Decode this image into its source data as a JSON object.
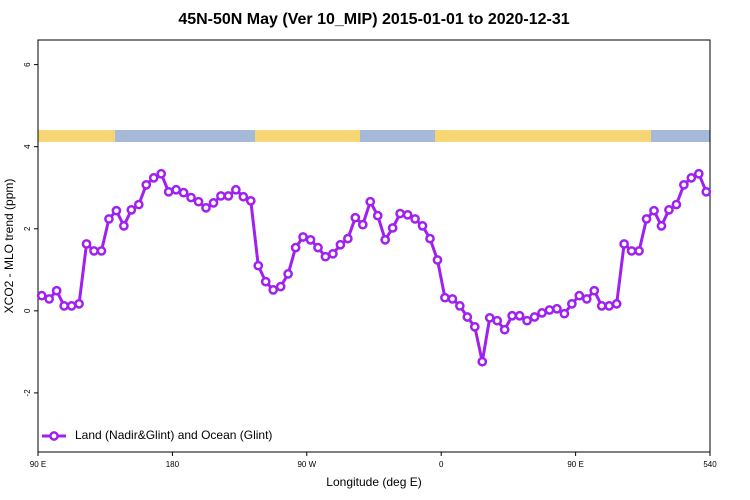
{
  "chart_data": {
    "type": "line",
    "title": "45N-50N May (Ver 10_MIP)   2015-01-01 to 2020-12-31",
    "x_label": "Longitude (deg E)",
    "y_label": "XCO2 - MLO trend (ppm)",
    "x": [
      92.5,
      97.5,
      102.5,
      107.5,
      112.5,
      117.5,
      122.5,
      127.5,
      132.5,
      137.5,
      142.5,
      147.5,
      152.5,
      157.5,
      162.5,
      167.5,
      172.5,
      177.5,
      182.5,
      187.5,
      192.5,
      197.5,
      202.5,
      207.5,
      212.5,
      217.5,
      222.5,
      227.5,
      232.5,
      237.5,
      242.5,
      247.5,
      252.5,
      257.5,
      262.5,
      267.5,
      272.5,
      277.5,
      282.5,
      287.5,
      292.5,
      297.5,
      302.5,
      307.5,
      312.5,
      317.5,
      322.5,
      327.5,
      332.5,
      337.5,
      342.5,
      347.5,
      352.5,
      357.5,
      362.5,
      367.5,
      372.5,
      377.5,
      382.5,
      387.5,
      392.5,
      397.5,
      402.5,
      407.5,
      412.5,
      417.5,
      422.5,
      427.5,
      432.5,
      437.5,
      442.5,
      447.5,
      452.5,
      457.5,
      462.5,
      467.5,
      472.5,
      477.5,
      482.5,
      487.5,
      492.5,
      497.5,
      502.5,
      507.5,
      512.5,
      517.5,
      522.5,
      527.5,
      532.5,
      537.5
    ],
    "series": [
      {
        "name": "Land (Nadir&Glint) and Ocean (Glint)",
        "color": "#a020f0",
        "values": [
          0.37,
          0.29,
          0.49,
          0.12,
          0.12,
          0.17,
          1.63,
          1.46,
          1.46,
          2.24,
          2.44,
          2.07,
          2.46,
          2.59,
          3.07,
          3.24,
          3.34,
          2.9,
          2.95,
          2.88,
          2.76,
          2.66,
          2.51,
          2.63,
          2.8,
          2.8,
          2.95,
          2.78,
          2.68,
          1.1,
          0.71,
          0.51,
          0.59,
          0.9,
          1.54,
          1.8,
          1.73,
          1.54,
          1.32,
          1.39,
          1.61,
          1.76,
          2.27,
          2.1,
          2.66,
          2.32,
          1.73,
          2.02,
          2.37,
          2.34,
          2.24,
          2.07,
          1.76,
          1.24,
          0.32,
          0.29,
          0.12,
          -0.15,
          -0.39,
          -1.24,
          -0.17,
          -0.24,
          -0.46,
          -0.12,
          -0.12,
          -0.24,
          -0.15,
          -0.05,
          0.02,
          0.05,
          -0.07,
          0.17,
          0.37,
          0.29,
          0.49,
          0.12,
          0.12,
          0.17,
          1.63,
          1.46,
          1.46,
          2.24,
          2.44,
          2.07,
          2.46,
          2.59,
          3.07,
          3.24,
          3.34,
          2.9
        ]
      }
    ],
    "xlim": [
      90,
      540
    ],
    "xticks": [
      {
        "value": 90,
        "label": "90 E"
      },
      180,
      {
        "value": 270,
        "label": "90 W"
      },
      {
        "value": 360,
        "label": "0"
      },
      {
        "value": 450,
        "label": "90 E"
      },
      540
    ],
    "ylim": [
      -3.44,
      6.6
    ],
    "yticks": [
      -2,
      0,
      2,
      4,
      6
    ],
    "legend": "bottom-left"
  }
}
